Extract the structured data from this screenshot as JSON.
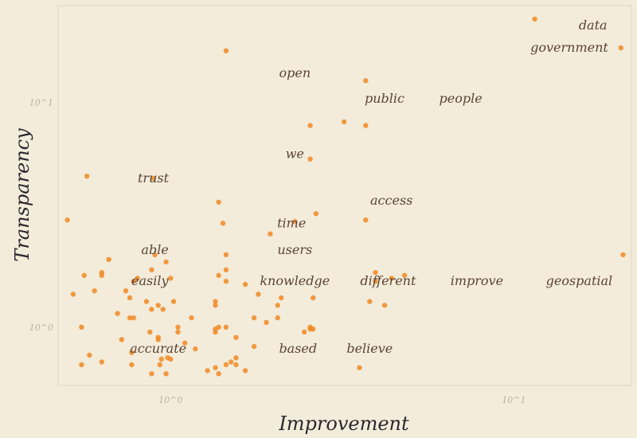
{
  "chart_data": {
    "type": "scatter",
    "xlabel": "Improvement",
    "ylabel": "Transparency",
    "x_scale": "log",
    "y_scale": "log",
    "xlim": [
      0.47,
      22
    ],
    "ylim": [
      0.55,
      27
    ],
    "x_ticks": [
      {
        "value": 1,
        "label": "10^0"
      },
      {
        "value": 10,
        "label": "10^1"
      }
    ],
    "y_ticks": [
      {
        "value": 1,
        "label": "10^0"
      },
      {
        "value": 10,
        "label": "10^1"
      }
    ],
    "grid": false,
    "colors": {
      "point": "#f08a24",
      "label": "#5a4336",
      "frame": "#ded6c2",
      "background": "#f3ecda"
    },
    "labels": [
      {
        "text": "data",
        "x": 17,
        "y": 22
      },
      {
        "text": "government",
        "x": 14.5,
        "y": 17.5
      },
      {
        "text": "open",
        "x": 2.3,
        "y": 13.5
      },
      {
        "text": "public",
        "x": 4.2,
        "y": 10.4
      },
      {
        "text": "people",
        "x": 7.0,
        "y": 10.4
      },
      {
        "text": "we",
        "x": 2.3,
        "y": 5.9
      },
      {
        "text": "trust",
        "x": 0.89,
        "y": 4.6
      },
      {
        "text": "access",
        "x": 4.4,
        "y": 3.65
      },
      {
        "text": "time",
        "x": 2.25,
        "y": 2.9
      },
      {
        "text": "able",
        "x": 0.9,
        "y": 2.2
      },
      {
        "text": "users",
        "x": 2.3,
        "y": 2.2
      },
      {
        "text": "easily",
        "x": 0.87,
        "y": 1.6
      },
      {
        "text": "knowledge",
        "x": 2.3,
        "y": 1.6
      },
      {
        "text": "different",
        "x": 4.3,
        "y": 1.6
      },
      {
        "text": "improve",
        "x": 7.8,
        "y": 1.6
      },
      {
        "text": "geospatial",
        "x": 15.5,
        "y": 1.6
      },
      {
        "text": "accurate",
        "x": 0.92,
        "y": 0.8
      },
      {
        "text": "based",
        "x": 2.35,
        "y": 0.8
      },
      {
        "text": "believe",
        "x": 3.8,
        "y": 0.8
      }
    ],
    "points": [
      [
        11.5,
        23.5
      ],
      [
        20.5,
        17.5
      ],
      [
        20.8,
        2.1
      ],
      [
        1.45,
        17.0
      ],
      [
        3.7,
        12.5
      ],
      [
        3.2,
        8.2
      ],
      [
        2.55,
        7.9
      ],
      [
        3.7,
        7.9
      ],
      [
        2.55,
        5.6
      ],
      [
        0.57,
        4.7
      ],
      [
        0.89,
        4.6
      ],
      [
        1.38,
        3.6
      ],
      [
        0.5,
        3.0
      ],
      [
        3.7,
        3.0
      ],
      [
        2.65,
        3.2
      ],
      [
        2.3,
        2.95
      ],
      [
        1.42,
        2.9
      ],
      [
        1.95,
        2.6
      ],
      [
        1.45,
        2.1
      ],
      [
        0.66,
        2.0
      ],
      [
        0.9,
        2.1
      ],
      [
        0.97,
        1.95
      ],
      [
        0.56,
        1.7
      ],
      [
        0.63,
        1.75
      ],
      [
        0.63,
        1.7
      ],
      [
        0.88,
        1.8
      ],
      [
        0.8,
        1.65
      ],
      [
        1.45,
        1.8
      ],
      [
        1.38,
        1.7
      ],
      [
        1.0,
        1.65
      ],
      [
        0.78,
        1.6
      ],
      [
        1.45,
        1.6
      ],
      [
        1.65,
        1.55
      ],
      [
        3.95,
        1.75
      ],
      [
        4.4,
        1.65
      ],
      [
        4.8,
        1.7
      ],
      [
        3.95,
        1.6
      ],
      [
        0.52,
        1.4
      ],
      [
        0.6,
        1.45
      ],
      [
        0.74,
        1.45
      ],
      [
        0.76,
        1.35
      ],
      [
        0.85,
        1.3
      ],
      [
        1.02,
        1.3
      ],
      [
        1.35,
        1.3
      ],
      [
        1.8,
        1.4
      ],
      [
        2.1,
        1.35
      ],
      [
        2.6,
        1.35
      ],
      [
        4.2,
        1.25
      ],
      [
        0.88,
        1.2
      ],
      [
        0.92,
        1.25
      ],
      [
        0.95,
        1.2
      ],
      [
        1.35,
        1.25
      ],
      [
        2.05,
        1.25
      ],
      [
        3.8,
        1.3
      ],
      [
        0.7,
        1.15
      ],
      [
        0.76,
        1.1
      ],
      [
        0.78,
        1.1
      ],
      [
        1.15,
        1.1
      ],
      [
        1.75,
        1.1
      ],
      [
        2.05,
        1.1
      ],
      [
        1.9,
        1.05
      ],
      [
        0.55,
        1.0
      ],
      [
        1.05,
        1.0
      ],
      [
        1.38,
        1.0
      ],
      [
        1.45,
        1.0
      ],
      [
        2.55,
        1.0
      ],
      [
        2.6,
        0.98
      ],
      [
        0.87,
        0.95
      ],
      [
        1.05,
        0.95
      ],
      [
        1.35,
        0.98
      ],
      [
        1.35,
        0.95
      ],
      [
        2.55,
        0.98
      ],
      [
        0.92,
        0.9
      ],
      [
        1.55,
        0.9
      ],
      [
        2.45,
        0.95
      ],
      [
        0.72,
        0.88
      ],
      [
        0.92,
        0.88
      ],
      [
        1.1,
        0.85
      ],
      [
        1.18,
        0.8
      ],
      [
        1.75,
        0.82
      ],
      [
        0.58,
        0.75
      ],
      [
        0.77,
        0.77
      ],
      [
        0.94,
        0.72
      ],
      [
        0.98,
        0.73
      ],
      [
        1.0,
        0.72
      ],
      [
        1.55,
        0.73
      ],
      [
        1.5,
        0.7
      ],
      [
        0.55,
        0.68
      ],
      [
        0.63,
        0.7
      ],
      [
        0.77,
        0.68
      ],
      [
        0.93,
        0.68
      ],
      [
        1.55,
        0.68
      ],
      [
        1.35,
        0.66
      ],
      [
        1.45,
        0.68
      ],
      [
        1.65,
        0.64
      ],
      [
        1.28,
        0.64
      ],
      [
        1.38,
        0.62
      ],
      [
        0.88,
        0.62
      ],
      [
        0.97,
        0.62
      ],
      [
        3.55,
        0.66
      ]
    ]
  }
}
